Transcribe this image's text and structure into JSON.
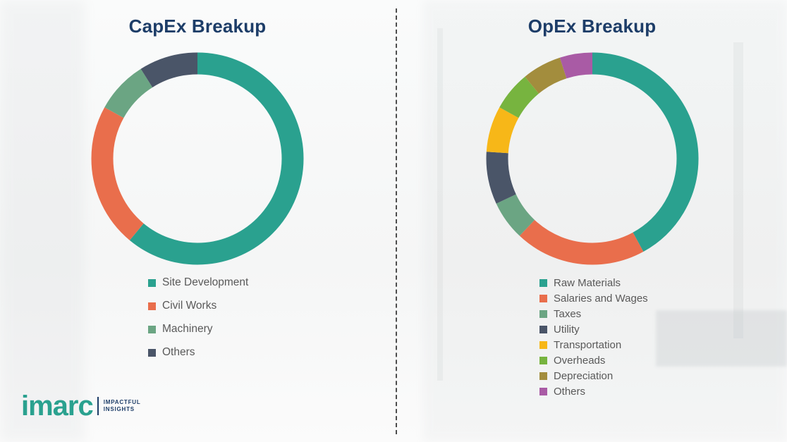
{
  "page": {
    "background_color": "#f7f8f8",
    "title_color": "#1d3d68",
    "legend_text_color": "#595959"
  },
  "chart_data": [
    {
      "type": "donut",
      "title": "CapEx Breakup",
      "legend_position": "below-left",
      "value_units": "percent-estimated-from-arc-angles",
      "segments": [
        {
          "label": "Site Development",
          "value": 61,
          "color": "#2aa18f"
        },
        {
          "label": "Civil Works",
          "value": 22,
          "color": "#e96e4c"
        },
        {
          "label": "Machinery",
          "value": 8,
          "color": "#6ba583"
        },
        {
          "label": "Others",
          "value": 9,
          "color": "#4a5568"
        }
      ]
    },
    {
      "type": "donut",
      "title": "OpEx Breakup",
      "legend_position": "below-left",
      "value_units": "percent-estimated-from-arc-angles",
      "segments": [
        {
          "label": "Raw Materials",
          "value": 42,
          "color": "#2aa18f"
        },
        {
          "label": "Salaries and Wages",
          "value": 20,
          "color": "#e96e4c"
        },
        {
          "label": "Taxes",
          "value": 6,
          "color": "#6ba583"
        },
        {
          "label": "Utility",
          "value": 8,
          "color": "#4a5568"
        },
        {
          "label": "Transportation",
          "value": 7,
          "color": "#f7b718"
        },
        {
          "label": "Overheads",
          "value": 6,
          "color": "#77b43f"
        },
        {
          "label": "Depreciation",
          "value": 6,
          "color": "#a38d3d"
        },
        {
          "label": "Others",
          "value": 5,
          "color": "#a95ba5"
        }
      ]
    }
  ],
  "logo": {
    "wordmark": "imarc",
    "tagline_line1": "IMPACTFUL",
    "tagline_line2": "INSIGHTS",
    "brand_teal": "#2aa18f",
    "brand_navy": "#1d3d68"
  }
}
